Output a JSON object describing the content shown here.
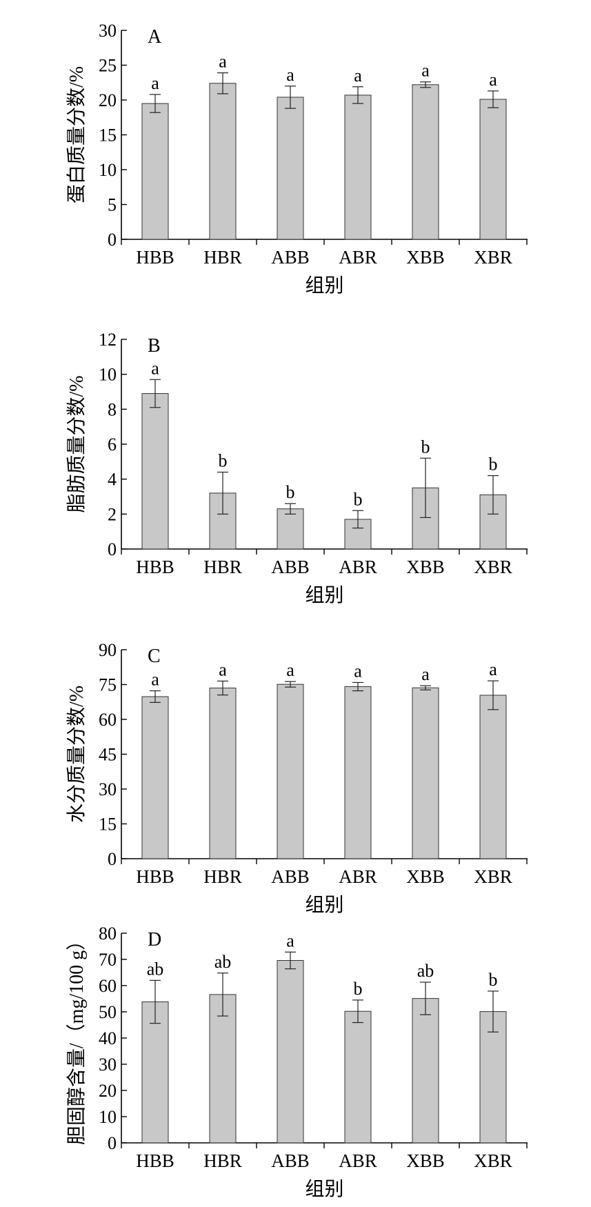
{
  "chart_data": [
    {
      "type": "bar",
      "panel_label": "A",
      "categories": [
        "HBB",
        "HBR",
        "ABB",
        "ABR",
        "XBB",
        "XBR"
      ],
      "values": [
        19.5,
        22.4,
        20.4,
        20.7,
        22.2,
        20.1
      ],
      "errors": [
        1.3,
        1.5,
        1.6,
        1.2,
        0.4,
        1.2
      ],
      "significance": [
        "a",
        "a",
        "a",
        "a",
        "a",
        "a"
      ],
      "xlabel": "组别",
      "ylabel": "蛋白质量分数/%",
      "ylim": [
        0,
        30
      ],
      "yticks": [
        0,
        5,
        10,
        15,
        20,
        25,
        30
      ]
    },
    {
      "type": "bar",
      "panel_label": "B",
      "categories": [
        "HBB",
        "HBR",
        "ABB",
        "ABR",
        "XBB",
        "XBR"
      ],
      "values": [
        8.9,
        3.2,
        2.3,
        1.7,
        3.5,
        3.1
      ],
      "errors": [
        0.8,
        1.2,
        0.3,
        0.5,
        1.7,
        1.1
      ],
      "significance": [
        "a",
        "b",
        "b",
        "b",
        "b",
        "b"
      ],
      "xlabel": "组别",
      "ylabel": "脂肪质量分数/%",
      "ylim": [
        0,
        12
      ],
      "yticks": [
        0,
        2,
        4,
        6,
        8,
        10,
        12
      ]
    },
    {
      "type": "bar",
      "panel_label": "C",
      "categories": [
        "HBB",
        "HBR",
        "ABB",
        "ABR",
        "XBB",
        "XBR"
      ],
      "values": [
        69.8,
        73.5,
        75.1,
        74.1,
        73.6,
        70.4
      ],
      "errors": [
        2.5,
        3.0,
        1.2,
        1.8,
        0.9,
        6.2
      ],
      "significance": [
        "a",
        "a",
        "a",
        "a",
        "a",
        "a"
      ],
      "xlabel": "组别",
      "ylabel": "水分质量分数/%",
      "ylim": [
        0,
        90
      ],
      "yticks": [
        0,
        15,
        30,
        45,
        60,
        75,
        90
      ]
    },
    {
      "type": "bar",
      "panel_label": "D",
      "categories": [
        "HBB",
        "HBR",
        "ABB",
        "ABR",
        "XBB",
        "XBR"
      ],
      "values": [
        53.8,
        56.6,
        69.6,
        50.2,
        55.1,
        50.1
      ],
      "errors": [
        8.2,
        8.2,
        3.2,
        4.3,
        6.2,
        7.8
      ],
      "significance": [
        "ab",
        "ab",
        "a",
        "b",
        "ab",
        "b"
      ],
      "xlabel": "组别",
      "ylabel": "胆固醇含量/（mg/100 g）",
      "ylim": [
        0,
        80
      ],
      "yticks": [
        0,
        10,
        20,
        30,
        40,
        50,
        60,
        70,
        80
      ]
    }
  ]
}
